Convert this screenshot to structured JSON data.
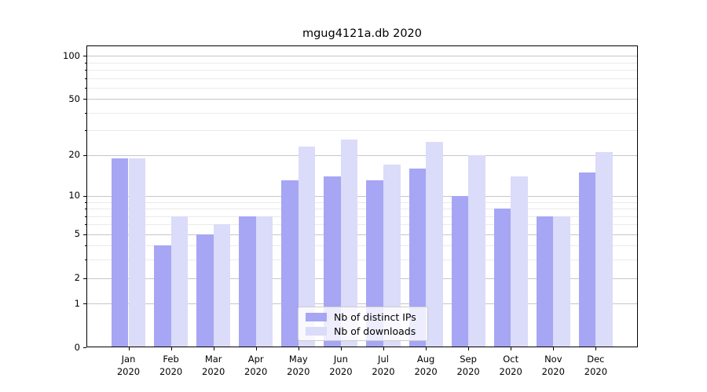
{
  "title": "mgug4121a.db 2020",
  "colors": {
    "distinct_ips_bar": "#a6a6f4",
    "downloads_bar": "#dbdbfa",
    "grid_major": "#c6c6c6",
    "grid_minor": "#eaeaea",
    "axis_line": "#000000"
  },
  "chart_data": {
    "type": "bar",
    "title": "mgug4121a.db 2020",
    "categories": [
      "Jan\n2020",
      "Feb\n2020",
      "Mar\n2020",
      "Apr\n2020",
      "May\n2020",
      "Jun\n2020",
      "Jul\n2020",
      "Aug\n2020",
      "Sep\n2020",
      "Oct\n2020",
      "Nov\n2020",
      "Dec\n2020"
    ],
    "series": [
      {
        "name": "Nb of distinct IPs",
        "color": "#a6a6f4",
        "values": [
          19,
          4,
          5,
          7,
          13,
          14,
          13,
          16,
          10,
          8,
          7,
          15
        ]
      },
      {
        "name": "Nb of downloads",
        "color": "#dbdbfa",
        "values": [
          19,
          7,
          6,
          7,
          23,
          26,
          17,
          25,
          20,
          14,
          7,
          21
        ]
      }
    ],
    "xlabel": "",
    "ylabel": "",
    "yscale": "log1p",
    "ylim": [
      0,
      118
    ],
    "yticks_major": [
      0,
      1,
      2,
      5,
      10,
      20,
      50,
      100
    ],
    "yticks_minor": [
      3,
      4,
      6,
      7,
      8,
      9,
      30,
      40,
      60,
      70,
      80,
      90
    ],
    "grid": true,
    "legend_position": "lower center inside"
  }
}
